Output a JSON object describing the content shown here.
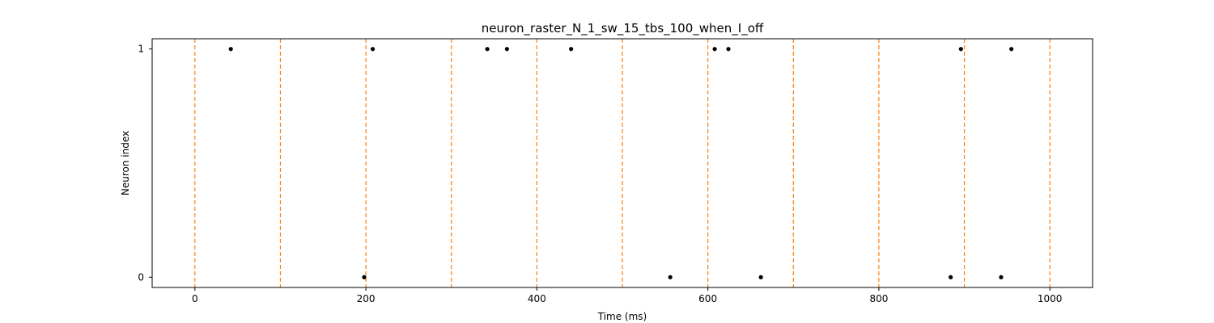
{
  "chart_data": {
    "type": "scatter",
    "title": "neuron_raster_N_1_sw_15_tbs_100_when_I_off",
    "xlabel": "Time (ms)",
    "ylabel": "Neuron index",
    "xlim": [
      -50,
      1050
    ],
    "ylim": [
      -0.045,
      1.045
    ],
    "x_ticks": [
      0,
      200,
      400,
      600,
      800,
      1000
    ],
    "y_ticks": [
      0,
      1
    ],
    "grid": false,
    "legend": "none",
    "marker_color": "#000000",
    "vline_color": "#ff7f0e",
    "vlines": [
      0,
      100,
      200,
      300,
      400,
      500,
      600,
      700,
      800,
      900,
      1000
    ],
    "series": [
      {
        "neuron": 1,
        "x": [
          42,
          208,
          342,
          365,
          440,
          608,
          624,
          896,
          955
        ]
      },
      {
        "neuron": 0,
        "x": [
          198,
          556,
          662,
          884,
          943
        ]
      }
    ]
  }
}
